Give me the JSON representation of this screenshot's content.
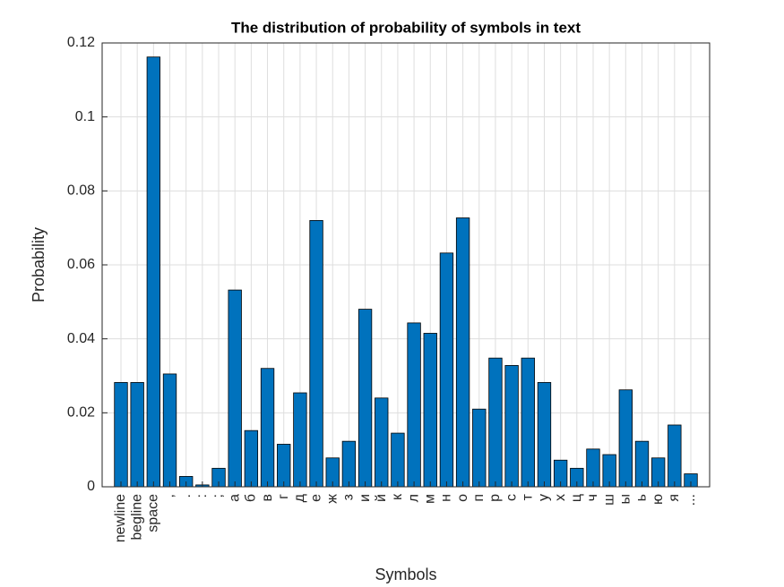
{
  "chart_data": {
    "type": "bar",
    "title": "The distribution of probability of symbols in text",
    "xlabel": "Symbols",
    "ylabel": "Probability",
    "categories": [
      "newline",
      "begline",
      "space",
      ",",
      ".",
      ":",
      ";",
      "а",
      "б",
      "в",
      "г",
      "д",
      "е",
      "ж",
      "з",
      "и",
      "й",
      "к",
      "л",
      "м",
      "н",
      "о",
      "п",
      "р",
      "с",
      "т",
      "у",
      "х",
      "ц",
      "ч",
      "ш",
      "ы",
      "ь",
      "ю",
      "я",
      "..."
    ],
    "values": [
      0.0282,
      0.0282,
      0.1162,
      0.0305,
      0.0028,
      0.0005,
      0.005,
      0.0532,
      0.0152,
      0.032,
      0.0115,
      0.0254,
      0.072,
      0.0078,
      0.0123,
      0.048,
      0.024,
      0.0145,
      0.0443,
      0.0415,
      0.0632,
      0.0727,
      0.021,
      0.0348,
      0.0328,
      0.0348,
      0.0282,
      0.0072,
      0.005,
      0.0102,
      0.0087,
      0.0262,
      0.0123,
      0.0078,
      0.0167,
      0.0035
    ],
    "color": "#0072bd",
    "ylim": [
      0,
      0.12
    ],
    "yticks": [
      0,
      0.02,
      0.04,
      0.06,
      0.08,
      0.1,
      0.12
    ],
    "grid": true
  }
}
